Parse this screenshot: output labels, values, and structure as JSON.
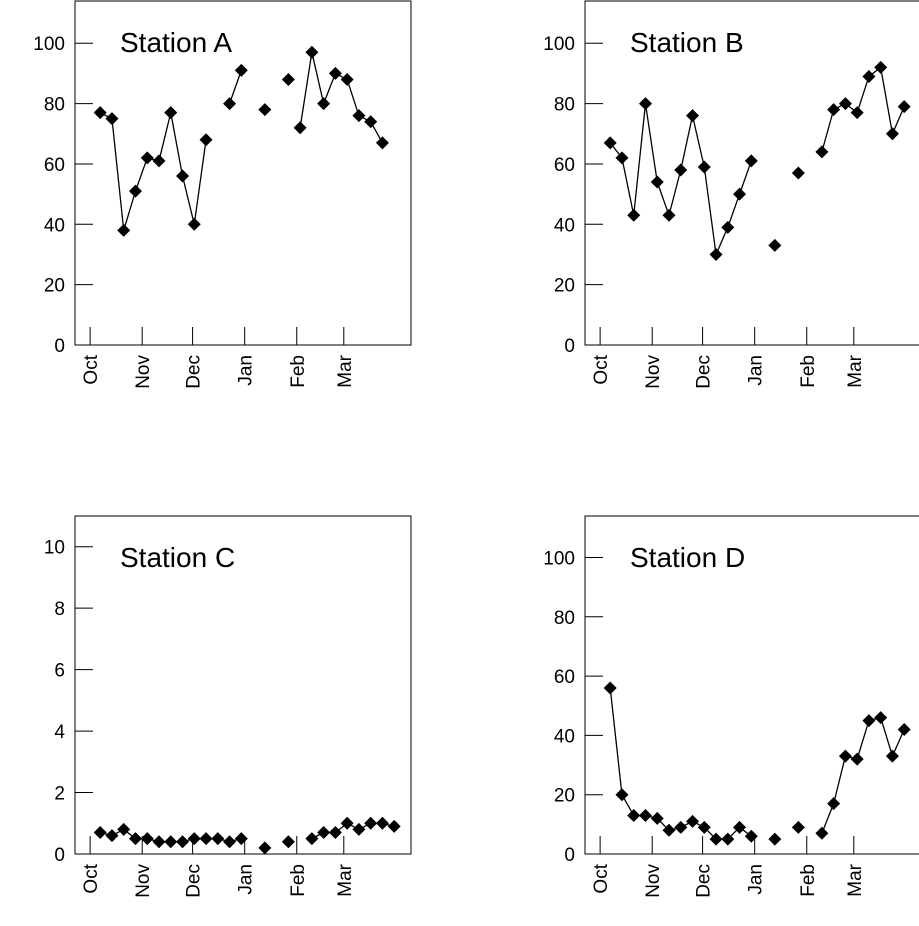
{
  "chart_data": [
    {
      "type": "line",
      "title": "Station A",
      "xlabel": "",
      "ylabel": "",
      "ylim": [
        0,
        114
      ],
      "yticks": [
        0,
        20,
        40,
        60,
        80,
        100
      ],
      "xlim": [
        -9,
        191
      ],
      "x_ticks": [
        {
          "label": "Oct",
          "x": 0
        },
        {
          "label": "Nov",
          "x": 31
        },
        {
          "label": "Dec",
          "x": 61
        },
        {
          "label": "Jan",
          "x": 92
        },
        {
          "label": "Feb",
          "x": 123
        },
        {
          "label": "Mar",
          "x": 151
        }
      ],
      "marker": "diamond",
      "series": [
        {
          "x": [
            6,
            13,
            20,
            27,
            34,
            41,
            48,
            55,
            62,
            69,
            83,
            90,
            104,
            118,
            125,
            132,
            139,
            146,
            153,
            160,
            167,
            174
          ],
          "y": [
            77,
            75,
            38,
            51,
            62,
            61,
            77,
            56,
            40,
            68,
            80,
            91,
            78,
            88,
            72,
            97,
            80,
            90,
            88,
            76,
            74,
            67
          ],
          "connected_to_next": [
            true,
            true,
            true,
            true,
            true,
            true,
            true,
            true,
            true,
            false,
            true,
            false,
            false,
            false,
            true,
            true,
            true,
            true,
            true,
            true,
            true
          ]
        }
      ]
    },
    {
      "type": "line",
      "title": "Station B",
      "xlabel": "",
      "ylabel": "",
      "ylim": [
        0,
        114
      ],
      "yticks": [
        0,
        20,
        40,
        60,
        80,
        100
      ],
      "xlim": [
        -9,
        191
      ],
      "x_ticks": [
        {
          "label": "Oct",
          "x": 0
        },
        {
          "label": "Nov",
          "x": 31
        },
        {
          "label": "Dec",
          "x": 61
        },
        {
          "label": "Jan",
          "x": 92
        },
        {
          "label": "Feb",
          "x": 123
        },
        {
          "label": "Mar",
          "x": 151
        }
      ],
      "marker": "diamond",
      "series": [
        {
          "x": [
            6,
            13,
            20,
            27,
            34,
            41,
            48,
            55,
            62,
            69,
            76,
            83,
            90,
            104,
            118,
            132,
            139,
            146,
            153,
            160,
            167,
            174,
            181
          ],
          "y": [
            67,
            62,
            43,
            80,
            54,
            43,
            58,
            76,
            59,
            30,
            39,
            50,
            61,
            33,
            57,
            64,
            78,
            80,
            77,
            89,
            92,
            70,
            79
          ],
          "connected_to_next": [
            true,
            true,
            true,
            true,
            true,
            true,
            true,
            true,
            true,
            true,
            true,
            true,
            false,
            false,
            false,
            true,
            true,
            true,
            true,
            true,
            true,
            true
          ]
        }
      ]
    },
    {
      "type": "line",
      "title": "Station C",
      "xlabel": "",
      "ylabel": "",
      "ylim": [
        0,
        11
      ],
      "yticks": [
        0,
        2,
        4,
        6,
        8,
        10
      ],
      "xlim": [
        -9,
        191
      ],
      "x_ticks": [
        {
          "label": "Oct",
          "x": 0
        },
        {
          "label": "Nov",
          "x": 31
        },
        {
          "label": "Dec",
          "x": 61
        },
        {
          "label": "Jan",
          "x": 92
        },
        {
          "label": "Feb",
          "x": 123
        },
        {
          "label": "Mar",
          "x": 151
        }
      ],
      "marker": "diamond",
      "series": [
        {
          "x": [
            6,
            13,
            20,
            27,
            34,
            41,
            48,
            55,
            62,
            69,
            76,
            83,
            90,
            104,
            118,
            132,
            139,
            146,
            153,
            160,
            167,
            174,
            181
          ],
          "y": [
            0.7,
            0.6,
            0.8,
            0.5,
            0.5,
            0.4,
            0.4,
            0.4,
            0.5,
            0.5,
            0.5,
            0.4,
            0.5,
            0.2,
            0.4,
            0.5,
            0.7,
            0.7,
            1.0,
            0.8,
            1.0,
            1.0,
            0.9
          ],
          "connected_to_next": [
            true,
            true,
            true,
            true,
            true,
            true,
            true,
            true,
            true,
            true,
            true,
            true,
            false,
            false,
            false,
            true,
            true,
            true,
            true,
            true,
            true,
            true
          ]
        }
      ]
    },
    {
      "type": "line",
      "title": "Station D",
      "xlabel": "",
      "ylabel": "",
      "ylim": [
        0,
        114
      ],
      "yticks": [
        0,
        20,
        40,
        60,
        80,
        100
      ],
      "xlim": [
        -9,
        191
      ],
      "x_ticks": [
        {
          "label": "Oct",
          "x": 0
        },
        {
          "label": "Nov",
          "x": 31
        },
        {
          "label": "Dec",
          "x": 61
        },
        {
          "label": "Jan",
          "x": 92
        },
        {
          "label": "Feb",
          "x": 123
        },
        {
          "label": "Mar",
          "x": 151
        }
      ],
      "marker": "diamond",
      "series": [
        {
          "x": [
            6,
            13,
            20,
            27,
            34,
            41,
            48,
            55,
            62,
            69,
            76,
            83,
            90,
            104,
            118,
            132,
            139,
            146,
            153,
            160,
            167,
            174,
            181
          ],
          "y": [
            56,
            20,
            13,
            13,
            12,
            8,
            9,
            11,
            9,
            5,
            5,
            9,
            6,
            5,
            9,
            7,
            17,
            33,
            32,
            45,
            46,
            33,
            42
          ],
          "connected_to_next": [
            true,
            true,
            true,
            true,
            true,
            true,
            true,
            true,
            true,
            true,
            true,
            true,
            false,
            false,
            false,
            true,
            true,
            true,
            true,
            true,
            true,
            true
          ]
        }
      ]
    }
  ]
}
